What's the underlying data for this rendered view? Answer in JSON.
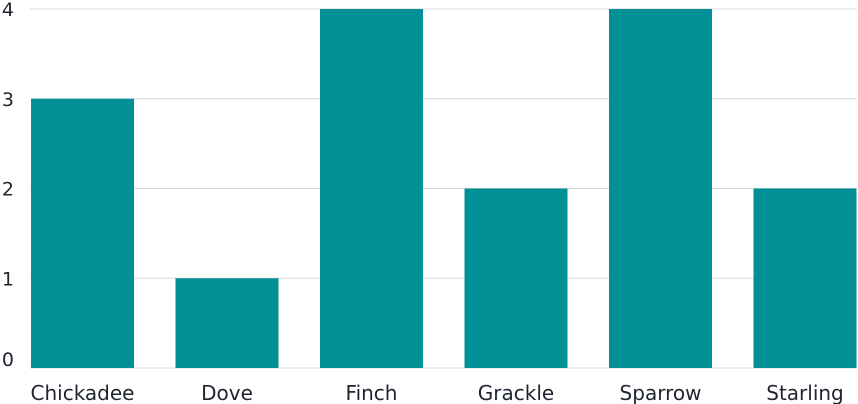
{
  "chart_data": {
    "type": "bar",
    "categories": [
      "Chickadee",
      "Dove",
      "Finch",
      "Grackle",
      "Sparrow",
      "Starling"
    ],
    "values": [
      3,
      1,
      4,
      2,
      4,
      2
    ],
    "title": "",
    "xlabel": "",
    "ylabel": "",
    "ylim": [
      0,
      4
    ],
    "yticks": [
      "0",
      "1",
      "2",
      "3",
      "4"
    ],
    "grid": true,
    "colors": {
      "bar": "#009096",
      "grid": "#d9d9d9",
      "text": "#1f2430"
    }
  }
}
